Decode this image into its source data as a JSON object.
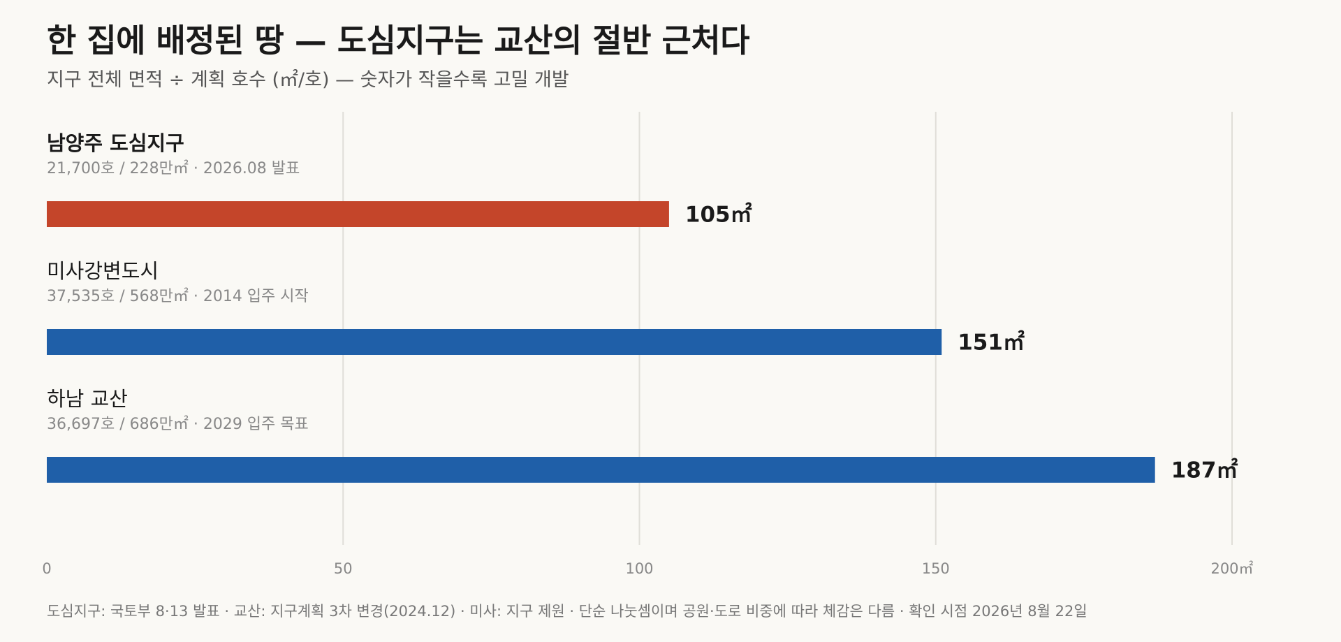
{
  "title": "한 집에 배정된 땅 — 도심지구는 교산의 절반 근처다",
  "subtitle": "지구 전체 면적 ÷ 계획 호수 (㎡/호) — 숫자가 작을수록 고밀 개발",
  "footnote": "도심지구: 국토부 8·13 발표 · 교산: 지구계획 3차 변경(2024.12) · 미사: 지구 제원 · 단순 나눗셈이며 공원·도로 비중에 따라 체감은 다름 · 확인 시점 2026년 8월 22일",
  "colors": {
    "highlight": "#c4452a",
    "base": "#1f5fa8",
    "grid": "#e0ded8",
    "background": "#faf9f5"
  },
  "chart_data": {
    "type": "bar",
    "orientation": "horizontal",
    "unit": "㎡",
    "xlim": [
      0,
      200
    ],
    "ticks": [
      0,
      50,
      100,
      150,
      200
    ],
    "tick_labels": [
      "0",
      "50",
      "100",
      "150",
      "200㎡"
    ],
    "grid": true,
    "categories": [
      {
        "name": "남양주 도심지구",
        "meta": "21,700호 / 228만㎡ · 2026.08 발표",
        "value": 105,
        "value_label": "105㎡",
        "highlight": true
      },
      {
        "name": "미사강변도시",
        "meta": "37,535호 / 568만㎡ · 2014 입주 시작",
        "value": 151,
        "value_label": "151㎡",
        "highlight": false
      },
      {
        "name": "하남 교산",
        "meta": "36,697호 / 686만㎡ · 2029 입주 목표",
        "value": 187,
        "value_label": "187㎡",
        "highlight": false
      }
    ]
  }
}
